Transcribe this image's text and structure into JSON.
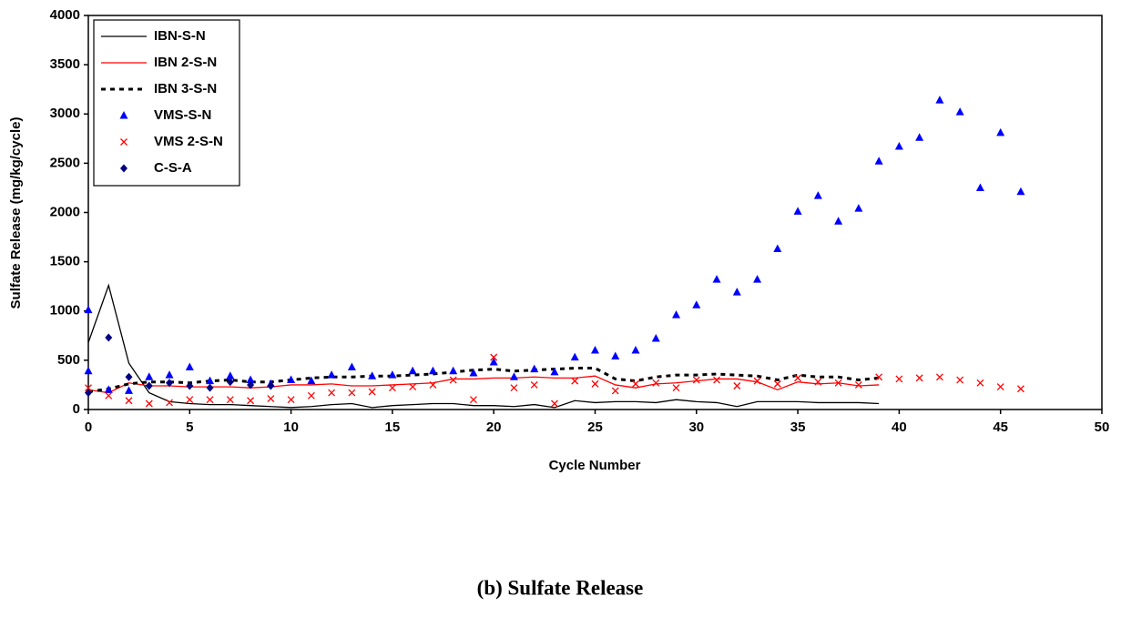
{
  "chart_data": {
    "type": "line",
    "title": "(b) Sulfate Release",
    "xlabel": "Cycle Number",
    "ylabel": "Sulfate Release (mg/kg/cycle)",
    "xlim": [
      0,
      50
    ],
    "xticks": [
      0,
      5,
      10,
      15,
      20,
      25,
      30,
      35,
      40,
      45,
      50
    ],
    "ylim": [
      0,
      4000
    ],
    "yticks": [
      0,
      500,
      1000,
      1500,
      2000,
      2500,
      3000,
      3500,
      4000
    ],
    "grid": false,
    "legend": "upper left",
    "series": [
      {
        "name": "IBN-S-N",
        "color": "#000000",
        "style": "line",
        "x": [
          0,
          1,
          2,
          3,
          4,
          5,
          6,
          7,
          8,
          9,
          10,
          11,
          12,
          13,
          14,
          15,
          16,
          17,
          18,
          19,
          20,
          21,
          22,
          23,
          24,
          25,
          26,
          27,
          28,
          29,
          30,
          31,
          32,
          33,
          34,
          35,
          36,
          37,
          38,
          39
        ],
        "values": [
          680,
          1260,
          470,
          170,
          80,
          60,
          50,
          50,
          40,
          30,
          20,
          30,
          50,
          60,
          20,
          40,
          50,
          60,
          60,
          40,
          40,
          30,
          50,
          20,
          90,
          70,
          80,
          80,
          70,
          100,
          80,
          70,
          30,
          80,
          80,
          80,
          70,
          70,
          70,
          60
        ]
      },
      {
        "name": "IBN 2-S-N",
        "color": "#ff0000",
        "style": "line",
        "x": [
          0,
          1,
          2,
          3,
          4,
          5,
          6,
          7,
          8,
          9,
          10,
          11,
          12,
          13,
          14,
          15,
          16,
          17,
          18,
          19,
          20,
          21,
          22,
          23,
          24,
          25,
          26,
          27,
          28,
          29,
          30,
          31,
          32,
          33,
          34,
          35,
          36,
          37,
          38,
          39
        ],
        "values": [
          200,
          170,
          270,
          240,
          240,
          230,
          230,
          230,
          220,
          230,
          250,
          250,
          260,
          240,
          240,
          250,
          260,
          270,
          310,
          310,
          320,
          320,
          330,
          320,
          320,
          340,
          250,
          220,
          260,
          270,
          290,
          310,
          310,
          280,
          200,
          280,
          260,
          270,
          240,
          250
        ]
      },
      {
        "name": "IBN 3-S-N",
        "color": "#000000",
        "style": "dashed",
        "x": [
          0,
          1,
          2,
          3,
          4,
          5,
          6,
          7,
          8,
          9,
          10,
          11,
          12,
          13,
          14,
          15,
          16,
          17,
          18,
          19,
          20,
          21,
          22,
          23,
          24,
          25,
          26,
          27,
          28,
          29,
          30,
          31,
          32,
          33,
          34,
          35,
          36,
          37,
          38,
          39
        ],
        "values": [
          180,
          210,
          260,
          280,
          280,
          270,
          290,
          300,
          280,
          280,
          300,
          320,
          330,
          330,
          340,
          340,
          350,
          360,
          380,
          400,
          410,
          390,
          400,
          410,
          420,
          420,
          310,
          290,
          330,
          350,
          350,
          360,
          350,
          340,
          300,
          350,
          330,
          330,
          300,
          320
        ]
      },
      {
        "name": "VMS-S-N",
        "color": "#0000ff",
        "style": "triangle",
        "x": [
          0,
          0,
          1,
          2,
          3,
          4,
          5,
          6,
          7,
          8,
          9,
          10,
          11,
          12,
          13,
          14,
          15,
          16,
          17,
          18,
          19,
          20,
          21,
          22,
          23,
          24,
          25,
          26,
          27,
          28,
          29,
          30,
          31,
          32,
          33,
          34,
          35,
          36,
          37,
          38,
          39,
          40,
          41,
          42,
          43,
          44,
          45,
          46
        ],
        "values": [
          1010,
          390,
          200,
          190,
          330,
          350,
          430,
          290,
          340,
          300,
          260,
          300,
          290,
          350,
          430,
          340,
          350,
          390,
          390,
          390,
          370,
          480,
          330,
          410,
          380,
          530,
          600,
          540,
          600,
          720,
          960,
          1060,
          1320,
          1190,
          1320,
          1630,
          2010,
          2170,
          1910,
          2040,
          2520,
          2670,
          2760,
          3140,
          3020,
          2250,
          2810,
          2210
        ]
      },
      {
        "name": "VMS 2-S-N",
        "color": "#ff0000",
        "style": "cross",
        "x": [
          0,
          1,
          2,
          3,
          4,
          5,
          6,
          7,
          8,
          9,
          10,
          11,
          12,
          13,
          14,
          15,
          16,
          17,
          18,
          19,
          20,
          21,
          22,
          23,
          24,
          25,
          26,
          27,
          28,
          29,
          30,
          31,
          32,
          33,
          34,
          35,
          36,
          37,
          38,
          39,
          40,
          41,
          42,
          43,
          44,
          45,
          46
        ],
        "values": [
          220,
          140,
          90,
          60,
          70,
          100,
          100,
          100,
          90,
          110,
          100,
          140,
          170,
          170,
          180,
          220,
          230,
          250,
          300,
          100,
          530,
          220,
          250,
          60,
          290,
          260,
          190,
          260,
          270,
          220,
          300,
          300,
          240,
          290,
          260,
          320,
          280,
          270,
          250,
          330,
          310,
          320,
          330,
          300,
          270,
          230,
          210
        ]
      },
      {
        "name": "C-S-A",
        "color": "#000080",
        "style": "diamond",
        "x": [
          0,
          1,
          2,
          3,
          4,
          5,
          6,
          7,
          8,
          9
        ],
        "values": [
          170,
          730,
          330,
          240,
          270,
          240,
          220,
          280,
          250,
          240
        ]
      }
    ]
  }
}
